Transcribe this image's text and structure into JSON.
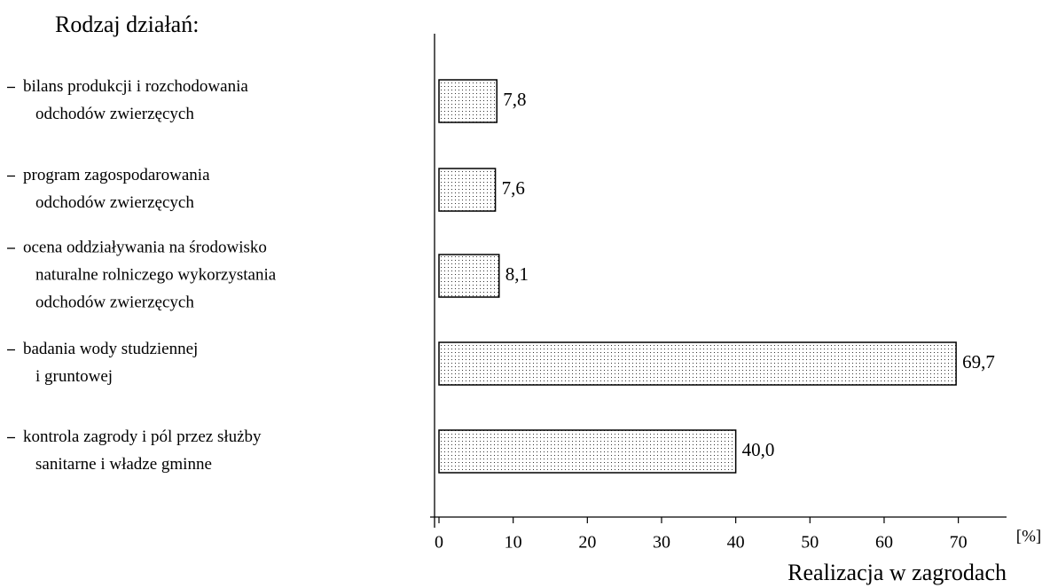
{
  "chart_data": {
    "type": "barh",
    "title": "Rodzaj działań:",
    "x_label": "Realizacja w zagrodach",
    "x_unit": "[%]",
    "categories": [
      [
        "bilans produkcji i rozchodowania",
        "odchodów zwierzęcych"
      ],
      [
        "program zagospodarowania",
        "odchodów zwierzęcych"
      ],
      [
        "ocena oddziaływania na środowisko",
        "naturalne rolniczego wykorzystania",
        "odchodów zwierzęcych"
      ],
      [
        "badania wody studziennej",
        "i gruntowej"
      ],
      [
        "kontrola zagrody i pól przez służby",
        "sanitarne i władze gminne"
      ]
    ],
    "values": [
      7.8,
      7.6,
      8.1,
      69.7,
      40.0
    ],
    "value_labels": [
      "7,8",
      "7,6",
      "8,1",
      "69,7",
      "40,0"
    ],
    "xlim": [
      0,
      76.5
    ],
    "xticks": [
      0,
      10,
      20,
      30,
      40,
      50,
      60,
      70
    ],
    "grid": false
  }
}
